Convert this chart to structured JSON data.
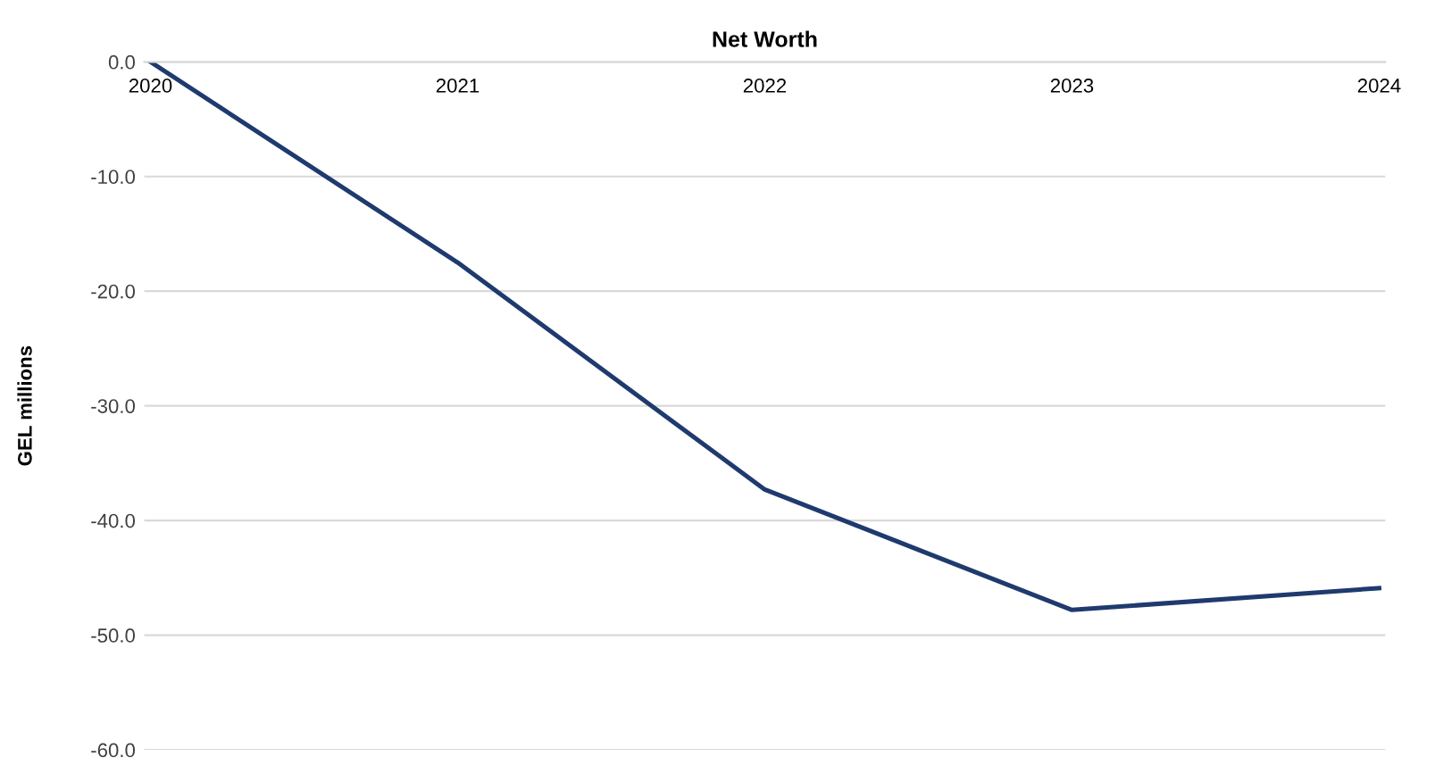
{
  "chart_data": {
    "type": "line",
    "title": "Net Worth",
    "ylabel": "GEL millions",
    "categories": [
      "2020",
      "2021",
      "2022",
      "2023",
      "2024"
    ],
    "series": [
      {
        "color": "#1f3a6e",
        "values": [
          0.0,
          -17.5,
          -37.3,
          -47.8,
          -45.9
        ]
      }
    ],
    "ylim": [
      -60,
      0
    ],
    "yticks": [
      {
        "value": 0,
        "label": "0.0"
      },
      {
        "value": -10,
        "label": "-10.0"
      },
      {
        "value": -20,
        "label": "-20.0"
      },
      {
        "value": -30,
        "label": "-30.0"
      },
      {
        "value": -40,
        "label": "-40.0"
      },
      {
        "value": -50,
        "label": "-50.0"
      },
      {
        "value": -60,
        "label": "-60.0"
      }
    ],
    "grid": "y",
    "legend": false,
    "marker": "none",
    "line_style": "solid"
  }
}
